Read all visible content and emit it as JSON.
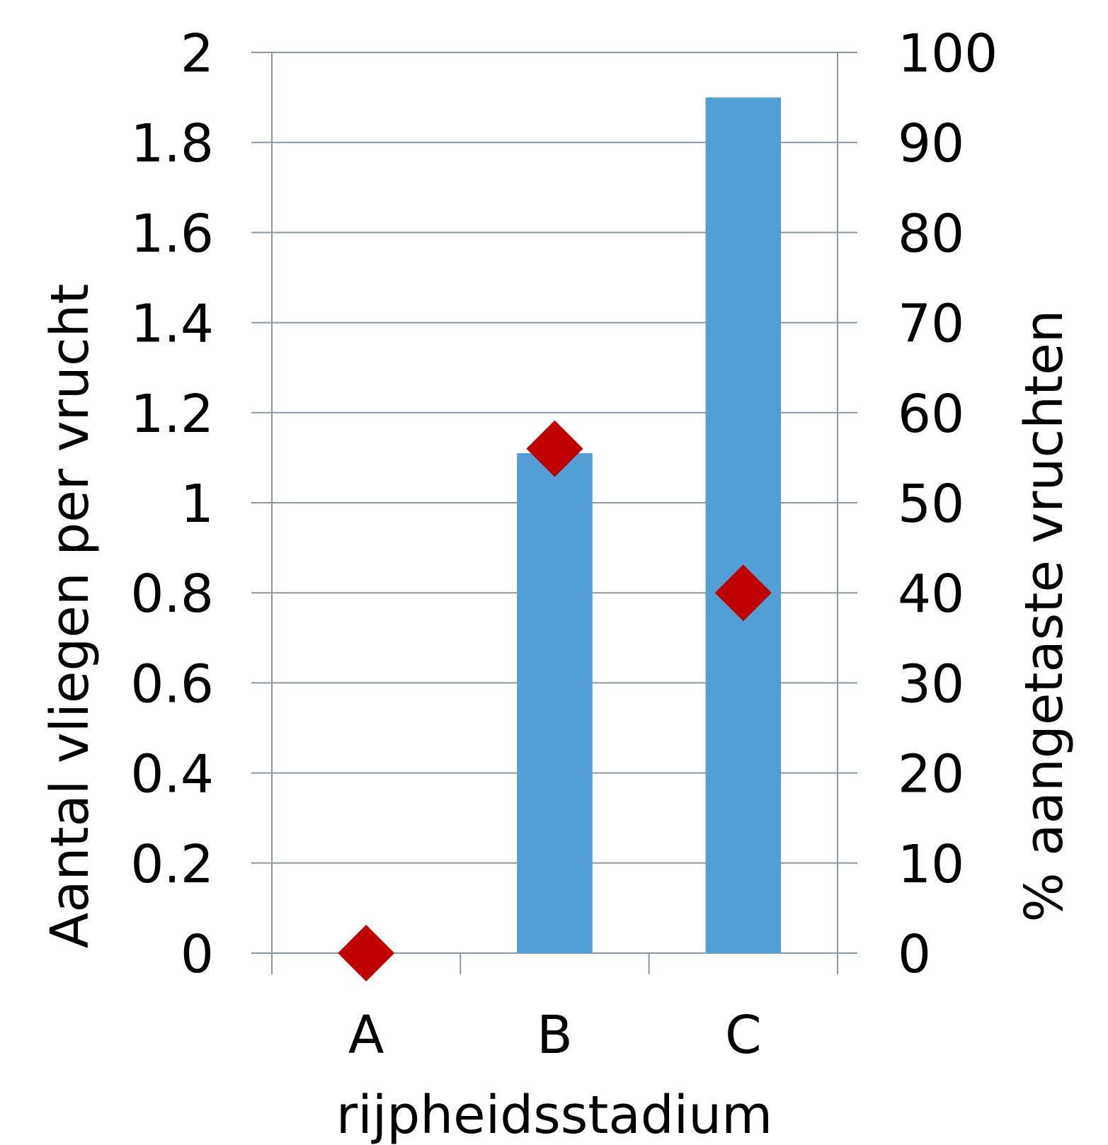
{
  "chart_data": {
    "type": "bar",
    "categories": [
      "A",
      "B",
      "C"
    ],
    "xlabel": "rijpheidsstadium",
    "ylabel": "Aantal vliegen  per vrucht",
    "y2label": "% aangetaste vruchten",
    "ylim": [
      0,
      2
    ],
    "y2lim": [
      0,
      100
    ],
    "yticks": [
      "0",
      "0.2",
      "0.4",
      "0.6",
      "0.8",
      "1",
      "1.2",
      "1.4",
      "1.6",
      "1.8",
      "2"
    ],
    "y2ticks": [
      "0",
      "10",
      "20",
      "30",
      "40",
      "50",
      "60",
      "70",
      "80",
      "90",
      "100"
    ],
    "grid": true,
    "series": [
      {
        "type": "bar",
        "axis": "left",
        "values": [
          0,
          1.11,
          1.9
        ],
        "color": "#529fd6"
      },
      {
        "type": "scatter",
        "marker": "diamond",
        "axis": "right",
        "values": [
          0,
          56,
          40
        ],
        "color": "#c00000"
      }
    ]
  }
}
